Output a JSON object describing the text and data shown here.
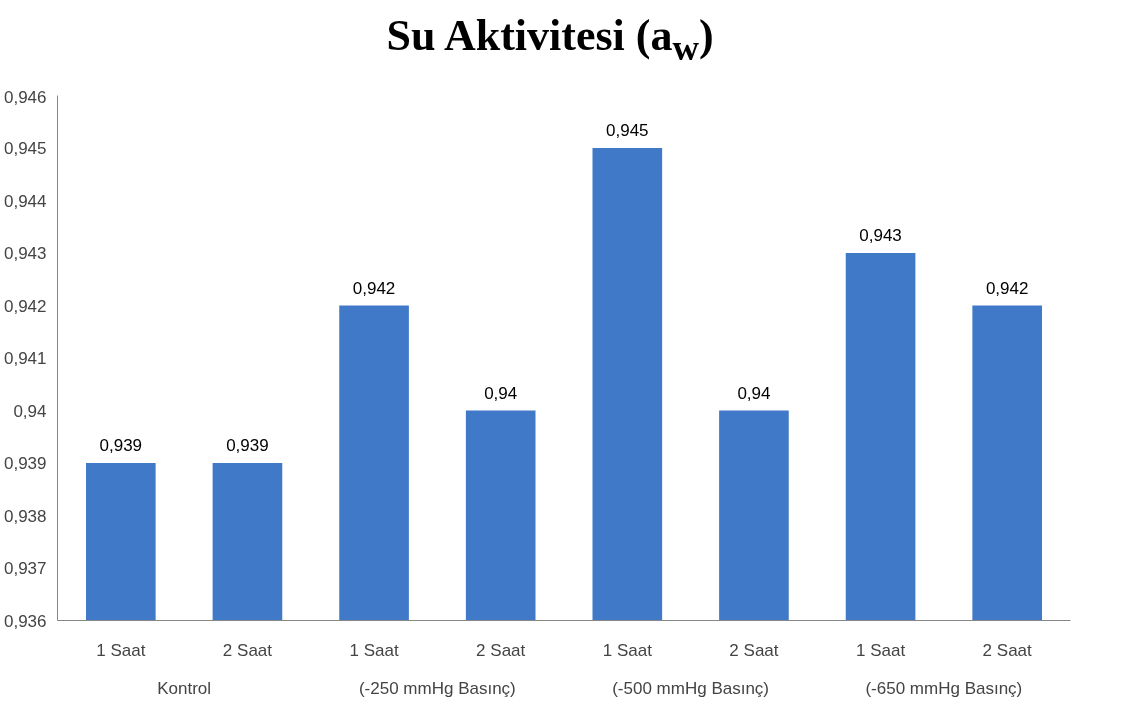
{
  "chart_data": {
    "type": "bar",
    "title": "Su Aktivitesi (a$_{w}$)",
    "categories": [
      "1 Saat",
      "2 Saat",
      "1 Saat",
      "2 Saat",
      "1 Saat",
      "2 Saat",
      "1 Saat",
      "2 Saat"
    ],
    "annotations": [
      "Kontrol",
      "(-250 mmHg Basınç)",
      "(-500 mmHg Basınç)",
      "(-650 mmHg Basınç)"
    ],
    "values": [
      0.939,
      0.939,
      0.942,
      0.94,
      0.945,
      0.94,
      0.943,
      0.942
    ],
    "color": "#4079c8",
    "ylim": [
      0.936,
      0.946
    ],
    "yticks": [
      {
        "value": 0.936,
        "label": "0,936"
      },
      {
        "value": 0.937,
        "label": "0,937"
      },
      {
        "value": 0.938,
        "label": "0,938"
      },
      {
        "value": 0.939,
        "label": "0,939"
      },
      {
        "value": 0.94,
        "label": "0,94"
      },
      {
        "value": 0.941,
        "label": "0,941"
      },
      {
        "value": 0.942,
        "label": "0,942"
      },
      {
        "value": 0.943,
        "label": "0,943"
      },
      {
        "value": 0.944,
        "label": "0,944"
      },
      {
        "value": 0.945,
        "label": "0,945"
      },
      {
        "value": 0.946,
        "label": "0,946"
      }
    ],
    "value_labels": [
      "0,939",
      "0,939",
      "0,942",
      "0,94",
      "0,945",
      "0,94",
      "0,943",
      "0,942"
    ],
    "grid": false
  }
}
